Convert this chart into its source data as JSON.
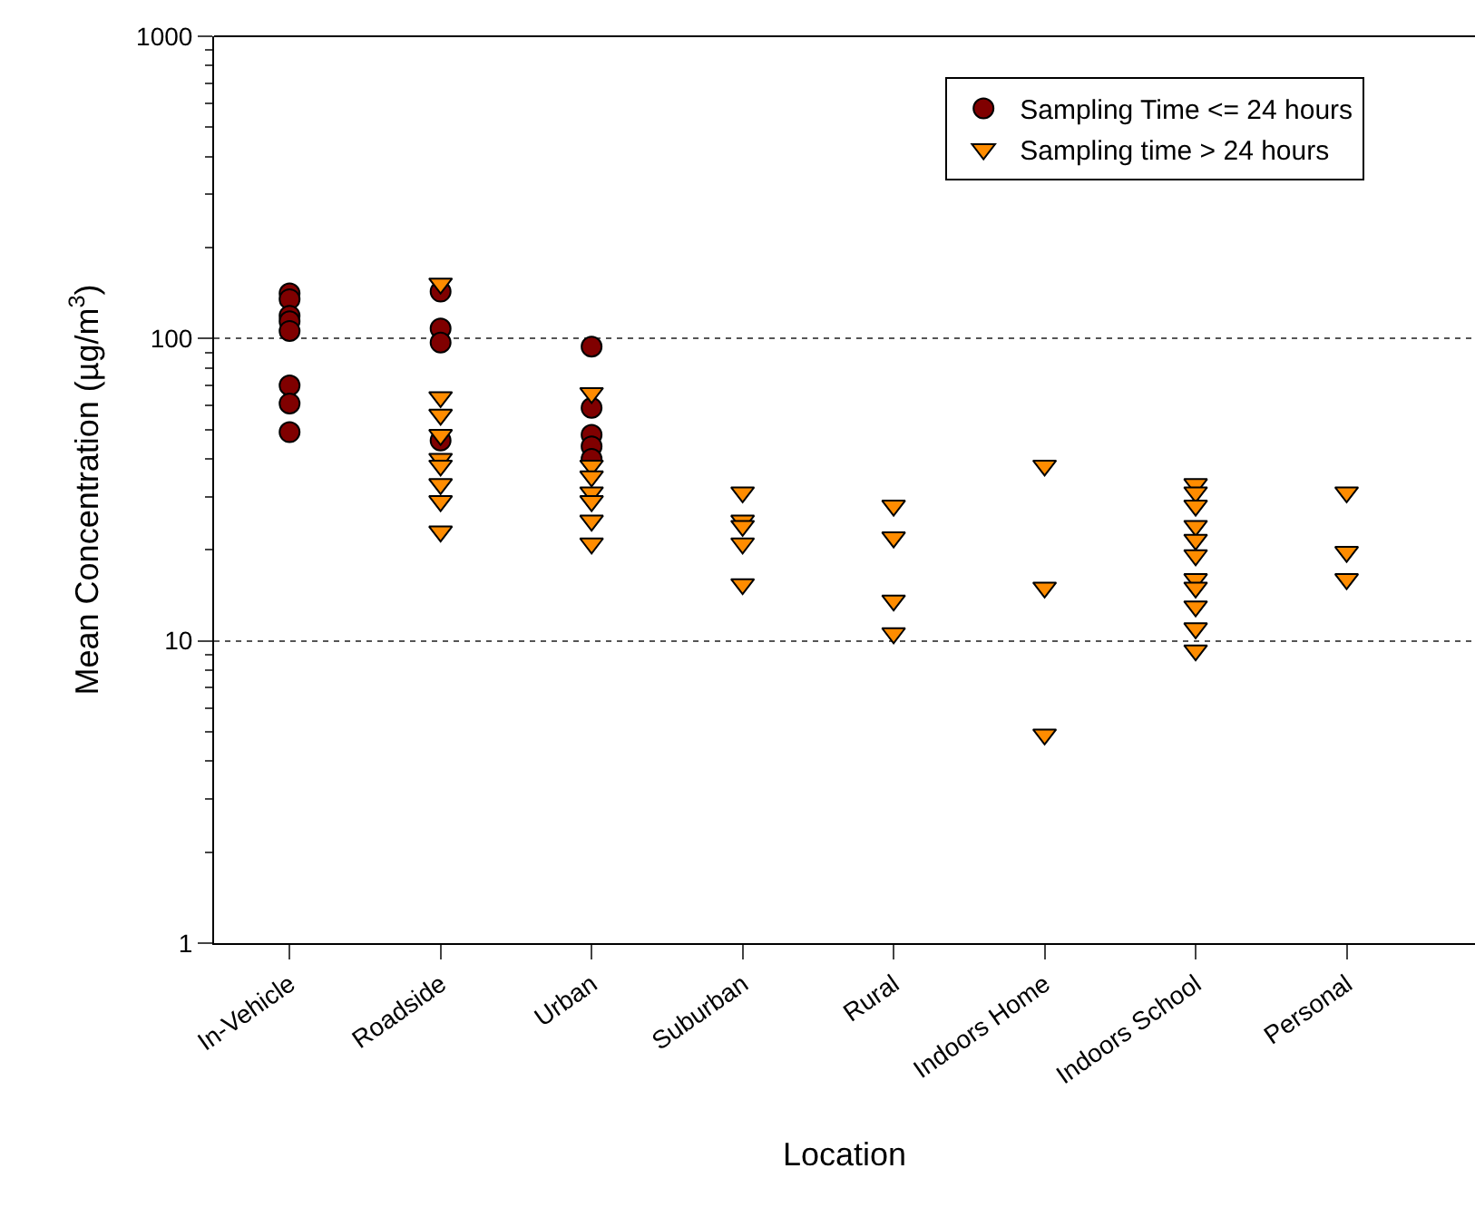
{
  "chart_data": {
    "type": "scatter",
    "xlabel": "Location",
    "ylabel": "Mean Concentration (µg/m$^{3}$)",
    "categories": [
      "In-Vehicle",
      "Roadside",
      "Urban",
      "Suburban",
      "Rural",
      "Indoors Home",
      "Indoors School",
      "Personal"
    ],
    "log": true,
    "ylim": [
      1,
      1000
    ],
    "yticks": [
      1,
      10,
      100,
      1000
    ],
    "grid": "y",
    "legend": "top right",
    "series": [
      {
        "name": "Sampling Time <= 24 hours",
        "color": "#800000",
        "marker": "circle",
        "x": [
          "In-Vehicle",
          "In-Vehicle",
          "In-Vehicle",
          "In-Vehicle",
          "In-Vehicle",
          "In-Vehicle",
          "In-Vehicle",
          "In-Vehicle",
          "Roadside",
          "Roadside",
          "Roadside",
          "Roadside",
          "Urban",
          "Urban",
          "Urban",
          "Urban",
          "Urban"
        ],
        "values": [
          141,
          135,
          119,
          114,
          106,
          70,
          61,
          49,
          143,
          108,
          97,
          46,
          94,
          59,
          48,
          44,
          40
        ]
      },
      {
        "name": "Sampling time > 24 hours",
        "color": "#ff8c00",
        "marker": "triangle",
        "x": [
          "Roadside",
          "Roadside",
          "Roadside",
          "Roadside",
          "Roadside",
          "Roadside",
          "Roadside",
          "Roadside",
          "Roadside",
          "Urban",
          "Urban",
          "Urban",
          "Urban",
          "Urban",
          "Urban",
          "Urban",
          "Suburban",
          "Suburban",
          "Suburban",
          "Suburban",
          "Suburban",
          "Rural",
          "Rural",
          "Rural",
          "Rural",
          "Indoors Home",
          "Indoors Home",
          "Indoors Home",
          "Indoors School",
          "Indoors School",
          "Indoors School",
          "Indoors School",
          "Indoors School",
          "Indoors School",
          "Indoors School",
          "Indoors School",
          "Indoors School",
          "Indoors School",
          "Indoors School",
          "Personal",
          "Personal",
          "Personal"
        ],
        "values": [
          152,
          64,
          56,
          48,
          40,
          38,
          33,
          29,
          23,
          66,
          38,
          35,
          31,
          29,
          25,
          21,
          31,
          25,
          24,
          21,
          15.4,
          28,
          22,
          13.6,
          10.6,
          38,
          15,
          4.9,
          33,
          31,
          28,
          24,
          21.6,
          19.2,
          16,
          15,
          13,
          11,
          9.3,
          31,
          19.7,
          16
        ]
      }
    ]
  }
}
